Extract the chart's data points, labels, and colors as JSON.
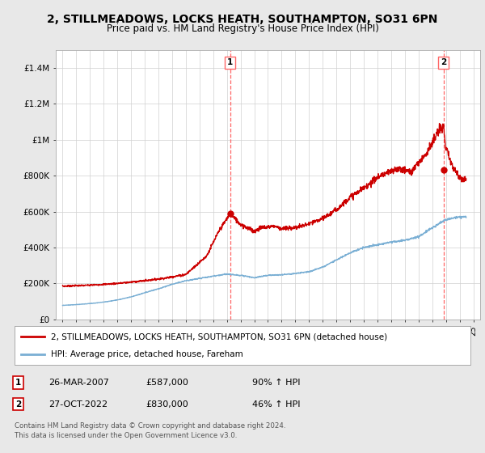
{
  "title": "2, STILLMEADOWS, LOCKS HEATH, SOUTHAMPTON, SO31 6PN",
  "subtitle": "Price paid vs. HM Land Registry's House Price Index (HPI)",
  "title_fontsize": 10,
  "subtitle_fontsize": 8.5,
  "bg_color": "#e8e8e8",
  "plot_bg_color": "#ffffff",
  "red_line_color": "#cc0000",
  "blue_line_color": "#7aafd4",
  "dashed_color": "#ff6666",
  "ylim": [
    0,
    1500000
  ],
  "yticks": [
    0,
    200000,
    400000,
    600000,
    800000,
    1000000,
    1200000,
    1400000
  ],
  "ytick_labels": [
    "£0",
    "£200K",
    "£400K",
    "£600K",
    "£800K",
    "£1M",
    "£1.2M",
    "£1.4M"
  ],
  "xmin": 1994.5,
  "xmax": 2025.5,
  "transaction1_x": 2007.23,
  "transaction1_y": 587000,
  "transaction2_x": 2022.82,
  "transaction2_y": 830000,
  "legend_red": "2, STILLMEADOWS, LOCKS HEATH, SOUTHAMPTON, SO31 6PN (detached house)",
  "legend_blue": "HPI: Average price, detached house, Fareham",
  "table_rows": [
    {
      "num": "1",
      "date": "26-MAR-2007",
      "price": "£587,000",
      "hpi": "90% ↑ HPI"
    },
    {
      "num": "2",
      "date": "27-OCT-2022",
      "price": "£830,000",
      "hpi": "46% ↑ HPI"
    }
  ],
  "footer": "Contains HM Land Registry data © Crown copyright and database right 2024.\nThis data is licensed under the Open Government Licence v3.0."
}
